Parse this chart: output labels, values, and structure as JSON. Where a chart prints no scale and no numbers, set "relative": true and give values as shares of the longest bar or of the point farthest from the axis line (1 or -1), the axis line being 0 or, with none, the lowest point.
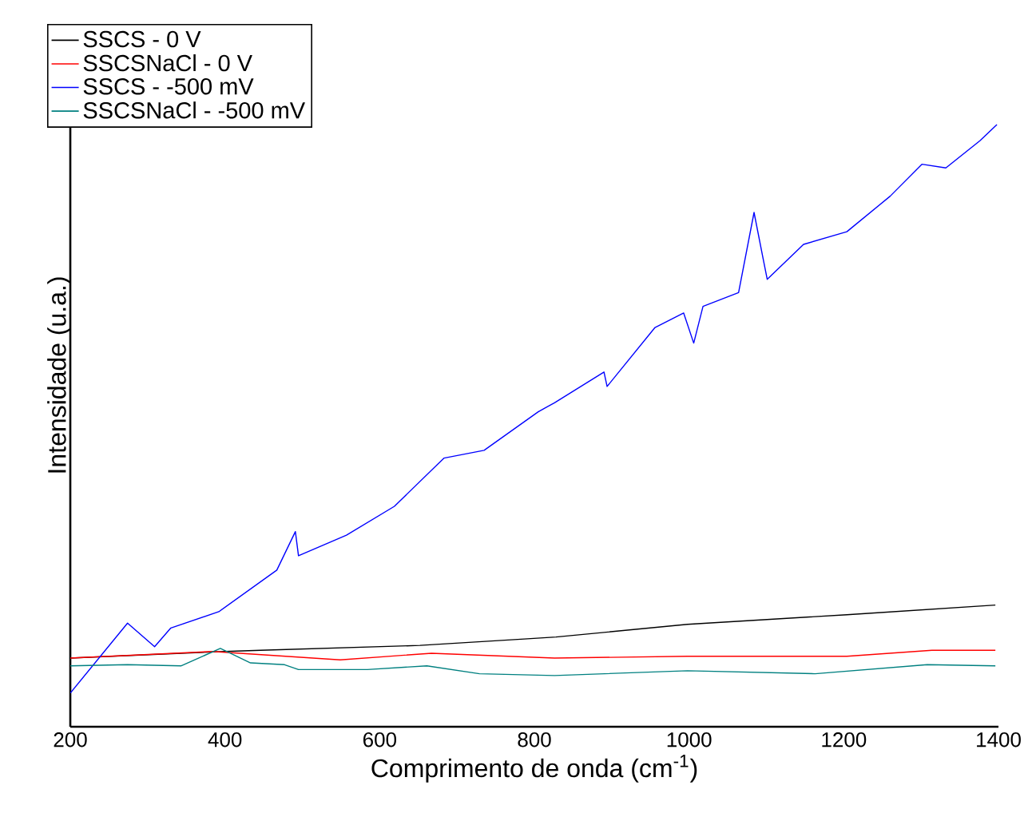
{
  "chart_data": {
    "type": "line",
    "relative": true,
    "xlabel": "Comprimento de onda (cm$^{-1}$)",
    "ylabel": "Intensidade (u.a.)",
    "xlim": [
      200,
      1400
    ],
    "xticks": [
      200,
      400,
      600,
      800,
      1000,
      1200,
      1400
    ],
    "grid": false,
    "legend": "top left",
    "marker": "none",
    "line_style": "solid",
    "series": [
      {
        "name": "SSCS - 0 V",
        "color": "#000000",
        "x": [
          200,
          400,
          446,
          652,
          791,
          828,
          998,
          1204,
          1396
        ],
        "values": [
          0.114,
          0.125,
          0.127,
          0.135,
          0.146,
          0.149,
          0.17,
          0.186,
          0.202
        ]
      },
      {
        "name": "SSCSNaCl - 0 V",
        "color": "#ff0000",
        "x": [
          200,
          384,
          549,
          667,
          826,
          998,
          1204,
          1314,
          1396
        ],
        "values": [
          0.114,
          0.125,
          0.111,
          0.122,
          0.114,
          0.117,
          0.117,
          0.127,
          0.127
        ]
      },
      {
        "name": "SSCS - -500 mV",
        "color": "#0000ff",
        "x": [
          200,
          274,
          309,
          330,
          392,
          467,
          491,
          495,
          557,
          619,
          683,
          735,
          805,
          826,
          890,
          894,
          956,
          993,
          1006,
          1018,
          1064,
          1084,
          1095,
          1101,
          1148,
          1204,
          1260,
          1301,
          1332,
          1376,
          1398
        ],
        "values": [
          0.056,
          0.172,
          0.133,
          0.164,
          0.191,
          0.26,
          0.324,
          0.284,
          0.318,
          0.366,
          0.446,
          0.459,
          0.523,
          0.538,
          0.589,
          0.565,
          0.663,
          0.687,
          0.637,
          0.698,
          0.721,
          0.854,
          0.782,
          0.743,
          0.801,
          0.822,
          0.881,
          0.934,
          0.928,
          0.973,
          1.0
        ]
      },
      {
        "name": "SSCSNaCl - -500 mV",
        "color": "#008080",
        "x": [
          200,
          274,
          343,
          394,
          433,
          477,
          495,
          584,
          661,
          729,
          826,
          998,
          1163,
          1308,
          1396
        ],
        "values": [
          0.101,
          0.103,
          0.101,
          0.13,
          0.106,
          0.103,
          0.095,
          0.095,
          0.101,
          0.088,
          0.085,
          0.093,
          0.088,
          0.103,
          0.101
        ]
      }
    ]
  }
}
